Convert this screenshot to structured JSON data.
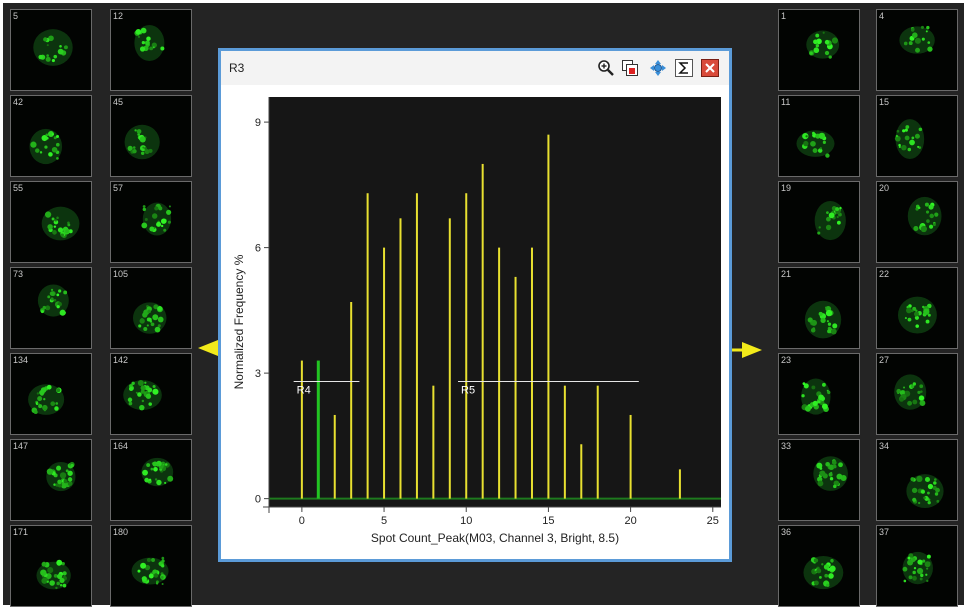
{
  "left_tiles": [
    [
      "5",
      "12"
    ],
    [
      "42",
      "45"
    ],
    [
      "55",
      "57"
    ],
    [
      "73",
      "105"
    ],
    [
      "134",
      "142"
    ],
    [
      "147",
      "164"
    ],
    [
      "171",
      "180"
    ]
  ],
  "right_tiles": [
    [
      "1",
      "4"
    ],
    [
      "11",
      "15"
    ],
    [
      "19",
      "20"
    ],
    [
      "21",
      "22"
    ],
    [
      "23",
      "27"
    ],
    [
      "33",
      "34"
    ],
    [
      "36",
      "37"
    ]
  ],
  "window": {
    "title": "R3",
    "toolbar": [
      "zoom-icon",
      "copy-image-icon",
      "pan-icon",
      "sum-icon",
      "close-icon"
    ]
  },
  "colors": {
    "bar": "#e8e030",
    "bar_gated": "#22c422",
    "arrow": "#f2ea1a",
    "window_border": "#5b9bd8"
  },
  "chart_data": {
    "type": "bar",
    "xlabel": "Spot Count_Peak(M03, Channel 3, Bright, 8.5)",
    "ylabel": "Normalized Frequency %",
    "xlim": [
      -2,
      25.5
    ],
    "ylim": [
      -0.2,
      9.6
    ],
    "xticks": [
      0,
      5,
      10,
      15,
      20,
      25
    ],
    "yticks": [
      0,
      3,
      6,
      9
    ],
    "series": [
      {
        "x": [
          0,
          1,
          2,
          3,
          4,
          5,
          6,
          7,
          8,
          9,
          10,
          11,
          12,
          13,
          14,
          15,
          16,
          17,
          18,
          19,
          20,
          21,
          22,
          23
        ],
        "y": [
          3.3,
          3.3,
          2.0,
          4.7,
          7.3,
          6.0,
          6.7,
          7.3,
          2.7,
          6.7,
          7.3,
          8.0,
          6.0,
          5.3,
          6.0,
          8.7,
          2.7,
          1.3,
          2.7,
          0,
          2.0,
          0,
          0,
          0.7
        ],
        "highlight_x": [
          1
        ]
      }
    ],
    "regions": [
      {
        "label": "R4",
        "x_start": -0.5,
        "x_end": 3.5,
        "y": 2.8
      },
      {
        "label": "R5",
        "x_start": 9.5,
        "x_end": 20.5,
        "y": 2.8
      }
    ]
  }
}
